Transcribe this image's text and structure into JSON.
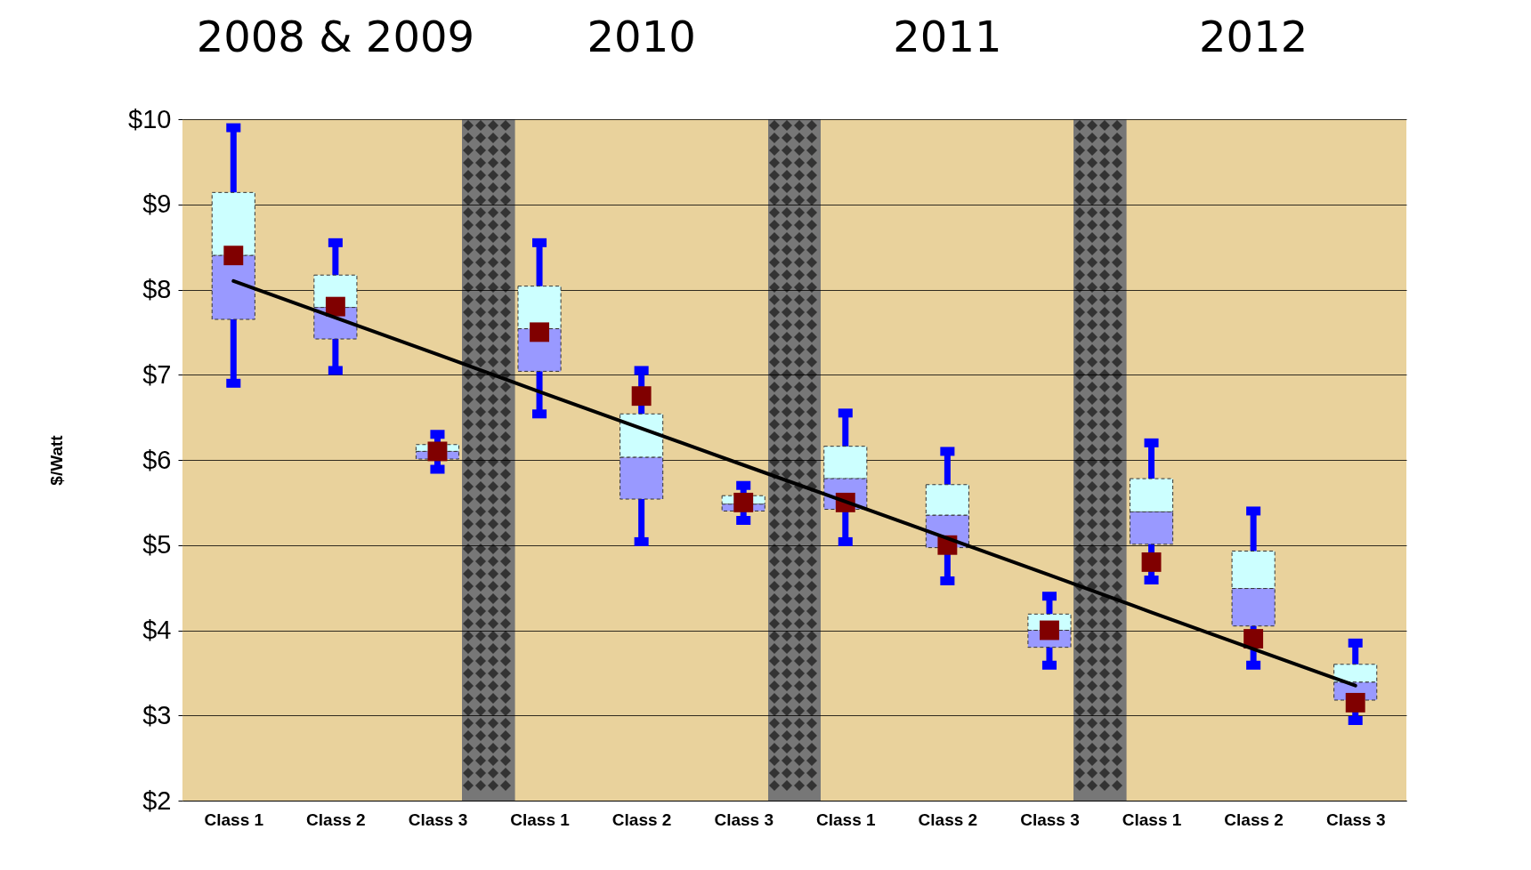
{
  "chart_data": {
    "type": "box",
    "ylabel": "$/Watt",
    "categories": [
      "Class 1",
      "Class 2",
      "Class 3",
      "Class 1",
      "Class 2",
      "Class 3",
      "Class 1",
      "Class 2",
      "Class 3",
      "Class 1",
      "Class 2",
      "Class 3"
    ],
    "annotations": [
      "2008 & 2009",
      "2010",
      "2011",
      "2012"
    ],
    "boxes": [
      {
        "low": 6.9,
        "q1": 7.65,
        "median": 8.4,
        "q3": 9.14,
        "high": 9.9,
        "mean": 8.4
      },
      {
        "low": 7.05,
        "q1": 7.42,
        "median": 7.79,
        "q3": 8.17,
        "high": 8.55,
        "mean": 7.8
      },
      {
        "low": 5.89,
        "q1": 6.01,
        "median": 6.1,
        "q3": 6.18,
        "high": 6.3,
        "mean": 6.1
      },
      {
        "low": 6.54,
        "q1": 7.04,
        "median": 7.54,
        "q3": 8.04,
        "high": 8.55,
        "mean": 7.5
      },
      {
        "low": 5.04,
        "q1": 5.54,
        "median": 6.03,
        "q3": 6.54,
        "high": 7.05,
        "mean": 6.75
      },
      {
        "low": 5.29,
        "q1": 5.4,
        "median": 5.48,
        "q3": 5.58,
        "high": 5.7,
        "mean": 5.5
      },
      {
        "low": 5.04,
        "q1": 5.42,
        "median": 5.78,
        "q3": 6.16,
        "high": 6.55,
        "mean": 5.5
      },
      {
        "low": 4.58,
        "q1": 4.97,
        "median": 5.35,
        "q3": 5.71,
        "high": 6.1,
        "mean": 5.0
      },
      {
        "low": 3.59,
        "q1": 3.8,
        "median": 4.0,
        "q3": 4.19,
        "high": 4.4,
        "mean": 4.0
      },
      {
        "low": 4.59,
        "q1": 5.01,
        "median": 5.39,
        "q3": 5.78,
        "high": 6.2,
        "mean": 4.8
      },
      {
        "low": 3.59,
        "q1": 4.05,
        "median": 4.49,
        "q3": 4.93,
        "high": 5.4,
        "mean": 3.9
      },
      {
        "low": 2.94,
        "q1": 3.18,
        "median": 3.39,
        "q3": 3.6,
        "high": 3.85,
        "mean": 3.15
      }
    ],
    "series": [
      {
        "type": "line",
        "color": "#000000",
        "values": [
          8.1,
          7.67,
          7.24,
          6.8,
          6.37,
          5.94,
          5.51,
          5.08,
          4.65,
          4.21,
          3.78,
          3.35
        ]
      }
    ],
    "ylim": [
      2,
      10
    ],
    "yticks": [
      {
        "value": 2,
        "label": "$2"
      },
      {
        "value": 3,
        "label": "$3"
      },
      {
        "value": 4,
        "label": "$4"
      },
      {
        "value": 5,
        "label": "$5"
      },
      {
        "value": 6,
        "label": "$6"
      },
      {
        "value": 7,
        "label": "$7"
      },
      {
        "value": 8,
        "label": "$8"
      },
      {
        "value": 9,
        "label": "$9"
      },
      {
        "value": 10,
        "label": "$10"
      }
    ],
    "grid": "y"
  }
}
